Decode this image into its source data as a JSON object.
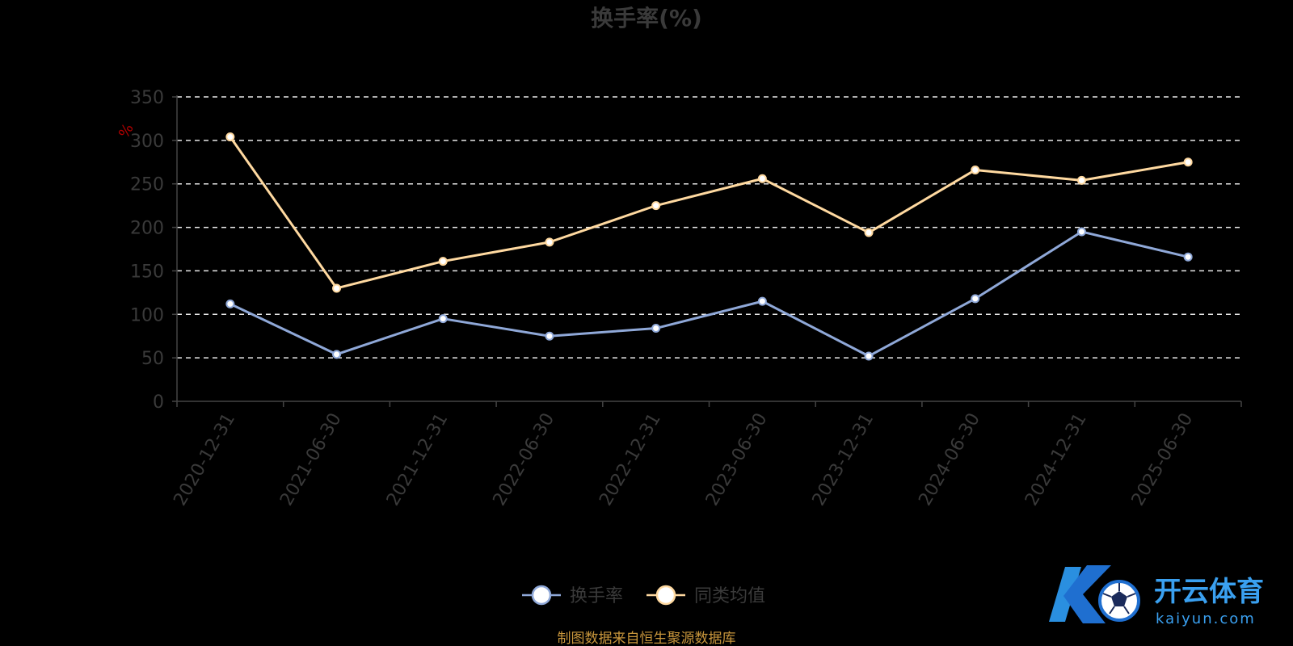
{
  "chart_data": {
    "type": "line",
    "title": "换手率(%)",
    "ylabel": "%",
    "xlabel": "",
    "ylim": [
      0,
      350
    ],
    "yticks": [
      0,
      50,
      100,
      150,
      200,
      250,
      300,
      350
    ],
    "categories": [
      "2020-12-31",
      "2021-06-30",
      "2021-12-31",
      "2022-06-30",
      "2022-12-31",
      "2023-06-30",
      "2023-12-31",
      "2024-06-30",
      "2024-12-31",
      "2025-06-30"
    ],
    "series": [
      {
        "name": "换手率",
        "color": "#8fa8d8",
        "values": [
          112,
          54,
          95,
          75,
          84,
          115,
          52,
          118,
          195,
          166
        ]
      },
      {
        "name": "同类均值",
        "color": "#ffd9a0",
        "values": [
          304,
          130,
          161,
          183,
          225,
          256,
          194,
          266,
          254,
          275
        ]
      }
    ],
    "grid": true,
    "legend_position": "bottom-center"
  },
  "source_note": "制图数据来自恒生聚源数据库",
  "watermark": {
    "brand_cn": "开云体育",
    "brand_en": "kaiyun.com",
    "icon": "soccer-ball-icon"
  }
}
